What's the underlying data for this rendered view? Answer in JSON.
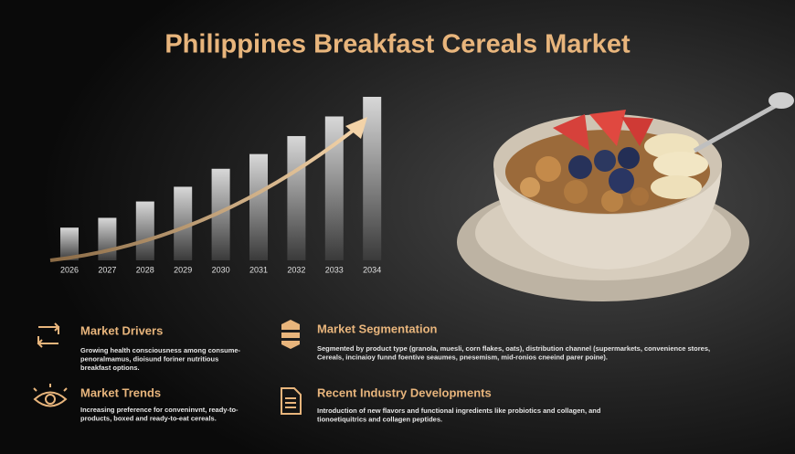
{
  "title": "Philippines Breakfast Cereals Market",
  "chart_data": {
    "type": "bar",
    "categories": [
      "2026",
      "2027",
      "2028",
      "2029",
      "2030",
      "2031",
      "2032",
      "2033",
      "2034"
    ],
    "values": [
      20,
      26,
      36,
      45,
      56,
      65,
      76,
      88,
      100
    ]
  },
  "sections": [
    {
      "title": "Market Drivers",
      "body": [
        "Growing health consciousness among consume-",
        "penoralmamus, dioisund foriner nutritious",
        "breakfast options."
      ]
    },
    {
      "title": "Market Segmentation",
      "body": [
        "Segmented by product type (granola, muesli, corn flakes, oats), distribution channel (supermarkets, convenience stores,",
        "Cereals, incinaioy funnd foentive seaumes, pnesemism, mid-ronios cneeind parer poine)."
      ]
    },
    {
      "title": "Market Trends",
      "body": [
        "Increasing preference for conveninvnt, ready-to-",
        "products, boxed and ready-to-eat cereals."
      ]
    },
    {
      "title": "Recent Industry Developments",
      "body": [
        "Introduction of new flavors and functional ingredients like probiotics and collagen, and",
        "tionoetiquitrics and collagen peptides."
      ]
    }
  ]
}
